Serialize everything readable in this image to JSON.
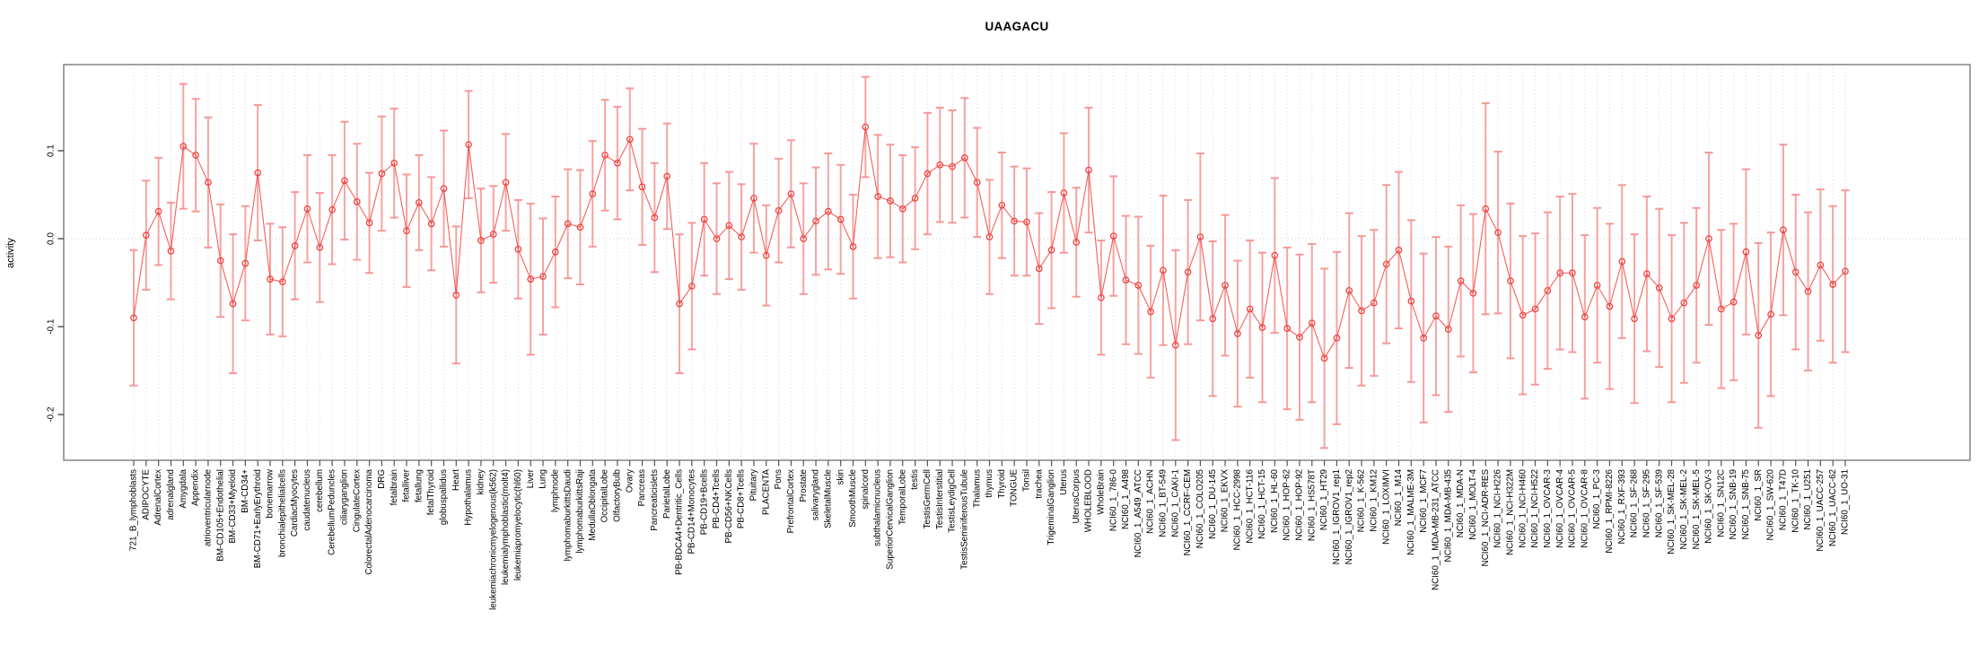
{
  "chart_data": {
    "type": "line",
    "title": "UAAGACU",
    "ylabel": "activity",
    "xlabel": "",
    "ylim": [
      -0.252,
      0.198
    ],
    "yticks": [
      0.1,
      0.0,
      -0.1,
      -0.2
    ],
    "grid": {
      "vertical_per_category": true,
      "zero_line_dotted": true,
      "legend": "none"
    },
    "marker": "open-circle",
    "error_bars": true,
    "colors": {
      "point": "#ee4543",
      "line": "#ee4543",
      "error_bar": "#f69492",
      "gridline": "#dcdcdc",
      "zero_line": "#d0d0d0",
      "axis_box": "#8c8c8c",
      "tick": "#555555",
      "text": "#000000",
      "background": "#ffffff"
    },
    "categories": [
      "721_B_lymphoblasts",
      "ADIPOCYTE",
      "AdrenalCortex",
      "adrenalgland",
      "Amygdala",
      "Appendix",
      "atrioventricularnode",
      "BM-CD105+Endothelial",
      "BM-CD33+Myeloid",
      "BM-CD34+",
      "BM-CD71+EarlyErythroid",
      "bonemarrow",
      "bronchialepithelialcells",
      "CardiacMyocytes",
      "caudatenucleus",
      "cerebellum",
      "CerebellumPeduncles",
      "ciliaryganglion",
      "CingulateCortex",
      "ColorectalAdenocarcinoma",
      "DRG",
      "fetalbrain",
      "fetalliver",
      "fetallung",
      "fetalThyroid",
      "globuspallidus",
      "Heart",
      "Hypothalamus",
      "kidney",
      "leukemiachronicmyelogenous(k562)",
      "leukemialymphoblastic(molt4)",
      "leukemiapromyelocytic(hl60)",
      "Liver",
      "Lung",
      "lymphnode",
      "lymphomaburkittsDaudi",
      "lymphomaburkittsRaji",
      "MedullaOblongata",
      "OccipitalLobe",
      "OlfactoryBulb",
      "Ovary",
      "Pancreas",
      "Pancreaticislets",
      "ParietalLobe",
      "PB-BDCA4+Dentritic_Cells",
      "PB-CD14+Monocytes",
      "PB-CD19+Bcells",
      "PB-CD4+Tcells",
      "PB-CD56+NKCells",
      "PB-CD8+Tcells",
      "Pituitary",
      "PLACENTA",
      "Pons",
      "PrefrontalCortex",
      "Prostate",
      "salivarygland",
      "SkeletalMuscle",
      "skin",
      "SmoothMuscle",
      "spinalcord",
      "subthalamicnucleus",
      "SuperiorCervicalGanglion",
      "TemporalLobe",
      "testis",
      "TestisGermCell",
      "TestisInterstitial",
      "TestisLeydigCell",
      "TestisSeminiferousTubule",
      "Thalamus",
      "thymus",
      "Thyroid",
      "TONGUE",
      "Tonsil",
      "trachea",
      "TrigeminalGanglion",
      "Uterus",
      "UterusCorpus",
      "WHOLEBLOOD",
      "WholeBrain",
      "NCI60_1_786-0",
      "NCI60_1_A498",
      "NCI60_1_A549_ATCC",
      "NCI60_1_ACHN",
      "NCI60_1_BT-549",
      "NCI60_1_CAKI-1",
      "NCI60_1_CCRF-CEM",
      "NCI60_1_COLO205",
      "NCI60_1_DU-145",
      "NCI60_1_EKVX",
      "NCI60_1_HCC-2998",
      "NCI60_1_HCT-116",
      "NCI60_1_HCT-15",
      "NCI60_1_HL-60",
      "NCI60_1_HOP-62",
      "NCI60_1_HOP-92",
      "NCI60_1_HS578T",
      "NCI60_1_HT29",
      "NCI60_1_IGROV1_rep1",
      "NCI60_1_IGROV1_rep2",
      "NCI60_1_K-562",
      "NCI60_1_KM12",
      "NCI60_1_LOXIMVI",
      "NCI60_1_M14",
      "NCI60_1_MALME-3M",
      "NCI60_1_MCF7",
      "NCI60_1_MDA-MB-231_ATCC",
      "NCI60_1_MDA-MB-435",
      "NCI60_1_MDA-N",
      "NCI60_1_MOLT-4",
      "NCI60_1_NCI-ADR-RES",
      "NCI60_1_NCI-H226",
      "NCI60_1_NCI-H322M",
      "NCI60_1_NCI-H460",
      "NCI60_1_NCI-H522",
      "NCI60_1_OVCAR-3",
      "NCI60_1_OVCAR-4",
      "NCI60_1_OVCAR-5",
      "NCI60_1_OVCAR-8",
      "NCI60_1_PC-3",
      "NCI60_1_RPMI-8226",
      "NCI60_1_RXF-393",
      "NCI60_1_SF-268",
      "NCI60_1_SF-295",
      "NCI60_1_SF-539",
      "NCI60_1_SK-MEL-28",
      "NCI60_1_SK-MEL-2",
      "NCI60_1_SK-MEL-5",
      "NCI60_1_SK-OV-3",
      "NCI60_1_SN12C",
      "NCI60_1_SNB-19",
      "NCI60_1_SNB-75",
      "NCI60_1_SR",
      "NCI60_1_SW-620",
      "NCI60_1_T47D",
      "NCI60_1_TK-10",
      "NCI60_1_U251",
      "NCI60_1_UACC-257",
      "NCI60_1_UACC-62",
      "NCI60_1_UO-31"
    ],
    "series": [
      {
        "name": "activity",
        "values": [
          -0.09,
          0.004,
          0.031,
          -0.014,
          0.105,
          0.095,
          0.064,
          -0.025,
          -0.074,
          -0.028,
          0.075,
          -0.046,
          -0.049,
          -0.008,
          0.034,
          -0.01,
          0.033,
          0.066,
          0.042,
          0.018,
          0.074,
          0.086,
          0.009,
          0.041,
          0.017,
          0.057,
          -0.064,
          0.107,
          -0.002,
          0.005,
          0.064,
          -0.012,
          -0.046,
          -0.043,
          -0.015,
          0.017,
          0.013,
          0.051,
          0.095,
          0.086,
          0.113,
          0.059,
          0.024,
          0.071,
          -0.074,
          -0.054,
          0.022,
          0.0,
          0.015,
          0.002,
          0.046,
          -0.019,
          0.032,
          0.051,
          0.0,
          0.02,
          0.031,
          0.022,
          -0.009,
          0.127,
          0.048,
          0.043,
          0.034,
          0.046,
          0.074,
          0.084,
          0.082,
          0.092,
          0.064,
          0.002,
          0.038,
          0.02,
          0.019,
          -0.034,
          -0.013,
          0.052,
          -0.004,
          0.078,
          -0.067,
          0.003,
          -0.047,
          -0.053,
          -0.083,
          -0.036,
          -0.121,
          -0.038,
          0.002,
          -0.091,
          -0.053,
          -0.108,
          -0.08,
          -0.101,
          -0.019,
          -0.102,
          -0.112,
          -0.096,
          -0.136,
          -0.113,
          -0.059,
          -0.082,
          -0.073,
          -0.029,
          -0.013,
          -0.071,
          -0.113,
          -0.088,
          -0.103,
          -0.048,
          -0.062,
          0.034,
          0.007,
          -0.048,
          -0.087,
          -0.08,
          -0.059,
          -0.039,
          -0.039,
          -0.089,
          -0.053,
          -0.077,
          -0.026,
          -0.091,
          -0.04,
          -0.056,
          -0.091,
          -0.073,
          -0.053,
          0.0,
          -0.08,
          -0.072,
          -0.015,
          -0.11,
          -0.086,
          0.01,
          -0.038,
          -0.06,
          -0.03,
          -0.052,
          -0.037
        ],
        "err": [
          0.077,
          0.062,
          0.061,
          0.055,
          0.071,
          0.064,
          0.074,
          0.064,
          0.079,
          0.065,
          0.077,
          0.063,
          0.062,
          0.061,
          0.061,
          0.062,
          0.062,
          0.067,
          0.066,
          0.057,
          0.065,
          0.062,
          0.064,
          0.054,
          0.053,
          0.066,
          0.078,
          0.061,
          0.059,
          0.055,
          0.055,
          0.056,
          0.086,
          0.066,
          0.063,
          0.062,
          0.065,
          0.06,
          0.063,
          0.064,
          0.058,
          0.066,
          0.062,
          0.06,
          0.079,
          0.072,
          0.064,
          0.063,
          0.061,
          0.06,
          0.062,
          0.057,
          0.059,
          0.061,
          0.063,
          0.061,
          0.066,
          0.062,
          0.059,
          0.057,
          0.07,
          0.064,
          0.061,
          0.058,
          0.069,
          0.065,
          0.064,
          0.068,
          0.062,
          0.065,
          0.06,
          0.062,
          0.061,
          0.063,
          0.066,
          0.068,
          0.062,
          0.071,
          0.065,
          0.068,
          0.073,
          0.078,
          0.075,
          0.085,
          0.108,
          0.082,
          0.095,
          0.088,
          0.08,
          0.083,
          0.078,
          0.085,
          0.088,
          0.092,
          0.094,
          0.09,
          0.102,
          0.098,
          0.088,
          0.085,
          0.083,
          0.09,
          0.089,
          0.092,
          0.096,
          0.09,
          0.094,
          0.086,
          0.09,
          0.12,
          0.092,
          0.088,
          0.09,
          0.086,
          0.089,
          0.087,
          0.09,
          0.093,
          0.088,
          0.094,
          0.087,
          0.096,
          0.088,
          0.09,
          0.095,
          0.091,
          0.088,
          0.098,
          0.09,
          0.089,
          0.094,
          0.105,
          0.093,
          0.097,
          0.088,
          0.09,
          0.086,
          0.089,
          0.092
        ]
      }
    ]
  }
}
